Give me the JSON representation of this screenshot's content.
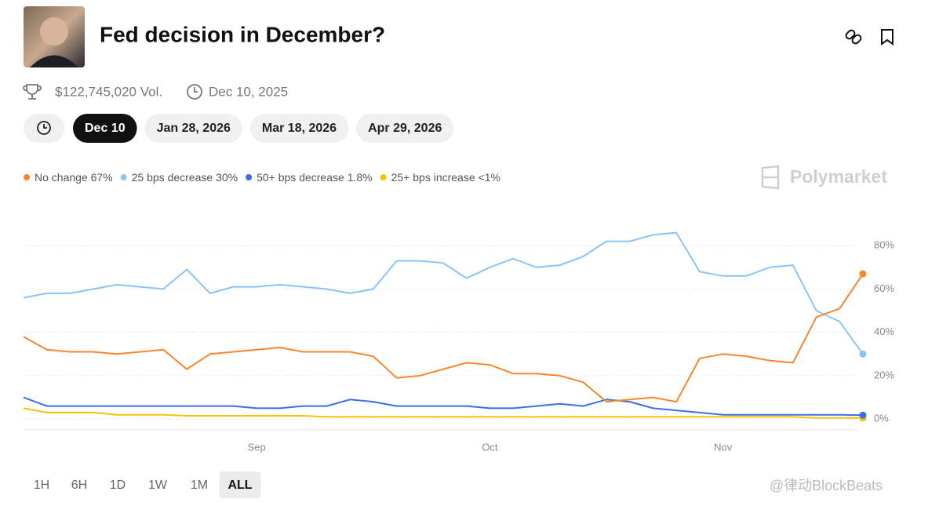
{
  "header": {
    "title": "Fed decision in December?",
    "volume": "$122,745,020 Vol.",
    "end_date": "Dec 10, 2025"
  },
  "date_tabs": [
    "Dec 10",
    "Jan 28, 2026",
    "Mar 18, 2026",
    "Apr 29, 2026"
  ],
  "brand": "Polymarket",
  "range_buttons": [
    "1H",
    "6H",
    "1D",
    "1W",
    "1M",
    "ALL"
  ],
  "watermark": "@律动BlockBeats",
  "chart_data": {
    "type": "line",
    "categories": [
      null,
      null,
      null,
      null,
      null,
      null,
      null,
      null,
      null,
      null,
      "Sep",
      null,
      null,
      null,
      null,
      null,
      null,
      null,
      null,
      null,
      "Oct",
      null,
      null,
      null,
      null,
      null,
      null,
      null,
      null,
      null,
      "Nov",
      null,
      null,
      null,
      null,
      null,
      null
    ],
    "series": [
      {
        "name": "No change",
        "current_label": "67%",
        "color": "#f7862f",
        "values": [
          38,
          32,
          31,
          31,
          30,
          31,
          32,
          23,
          30,
          31,
          32,
          33,
          31,
          31,
          31,
          29,
          19,
          20,
          23,
          26,
          25,
          21,
          21,
          20,
          17,
          8,
          9,
          10,
          8,
          28,
          30,
          29,
          27,
          26,
          47,
          51,
          67
        ]
      },
      {
        "name": "25 bps decrease",
        "current_label": "30%",
        "color": "#8cc4f5",
        "values": [
          56,
          58,
          58,
          60,
          62,
          61,
          60,
          69,
          58,
          61,
          61,
          62,
          61,
          60,
          58,
          60,
          73,
          73,
          72,
          65,
          70,
          74,
          70,
          71,
          75,
          82,
          82,
          85,
          86,
          68,
          66,
          66,
          70,
          71,
          50,
          45,
          30
        ]
      },
      {
        "name": "50+ bps decrease",
        "current_label": "1.8%",
        "color": "#3b6ee8",
        "values": [
          10,
          6,
          6,
          6,
          6,
          6,
          6,
          6,
          6,
          6,
          5,
          5,
          6,
          6,
          9,
          8,
          6,
          6,
          6,
          6,
          5,
          5,
          6,
          7,
          6,
          9,
          8,
          5,
          4,
          3,
          2,
          2,
          2,
          2,
          2,
          2,
          1.8
        ]
      },
      {
        "name": "25+ bps increase",
        "current_label": "<1%",
        "color": "#f5c400",
        "values": [
          5,
          3,
          3,
          3,
          2,
          2,
          2,
          1.5,
          1.5,
          1.5,
          1.5,
          1.5,
          1.5,
          1,
          1,
          1,
          1,
          1,
          1,
          1,
          1,
          1,
          1,
          1,
          1,
          1,
          1,
          1,
          1,
          1,
          1,
          1,
          1,
          1,
          0.5,
          0.5,
          0.5
        ]
      }
    ],
    "ylim": [
      -5,
      92
    ],
    "yticks": [
      {
        "value": 0,
        "label": "0%"
      },
      {
        "value": 20,
        "label": "20%"
      },
      {
        "value": 40,
        "label": "40%"
      },
      {
        "value": 60,
        "label": "60%"
      },
      {
        "value": 80,
        "label": "80%"
      }
    ],
    "grid": true
  }
}
